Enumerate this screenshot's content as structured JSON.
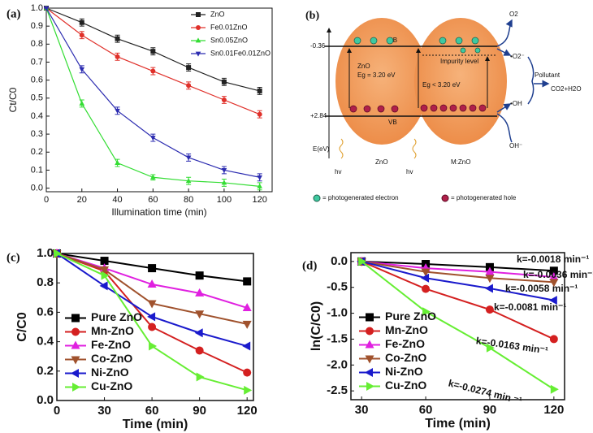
{
  "chart_data": [
    {
      "type": "line",
      "panel_label": "(a)",
      "xlabel": "Illumination time (min)",
      "ylabel": "Ct/C0",
      "x": [
        0,
        20,
        40,
        60,
        80,
        100,
        120
      ],
      "xlim": [
        0,
        127
      ],
      "ylim": [
        -0.02,
        1.0
      ],
      "xticks": [
        0,
        20,
        40,
        60,
        80,
        100,
        120
      ],
      "yticks": [
        {
          "value": 0,
          "label": "0.0"
        },
        0.1,
        0.2,
        0.3,
        0.4,
        0.5,
        0.6,
        0.7,
        0.8,
        0.9,
        {
          "value": 1,
          "label": "1.0"
        }
      ],
      "legend": "upper right",
      "series": [
        {
          "name": "ZnO",
          "color": "#222222",
          "marker": "square",
          "values": [
            1,
            0.92,
            0.83,
            0.76,
            0.67,
            0.59,
            0.54
          ],
          "errors": [
            0,
            0.02,
            0.02,
            0.02,
            0.02,
            0.02,
            0.02
          ]
        },
        {
          "name": "Fe0.01ZnO",
          "color": "#e0302a",
          "marker": "circle",
          "values": [
            1,
            0.85,
            0.73,
            0.65,
            0.57,
            0.49,
            0.41
          ],
          "errors": [
            0,
            0.02,
            0.02,
            0.02,
            0.02,
            0.02,
            0.02
          ]
        },
        {
          "name": "Sn0.05ZnO",
          "color": "#33dd33",
          "marker": "triangle-up",
          "values": [
            1,
            0.47,
            0.14,
            0.06,
            0.04,
            0.03,
            0.01
          ],
          "errors": [
            0,
            0.02,
            0.02,
            0.015,
            0.02,
            0.02,
            0.02
          ]
        },
        {
          "name": "Sn0.01Fe0.01ZnO",
          "color": "#2b2bb0",
          "marker": "triangle-down",
          "values": [
            1,
            0.66,
            0.43,
            0.28,
            0.17,
            0.1,
            0.06
          ],
          "errors": [
            0,
            0.02,
            0.02,
            0.02,
            0.02,
            0.02,
            0.02
          ]
        }
      ]
    },
    {
      "type": "line",
      "panel_label": "(c)",
      "xlabel": "Time (min)",
      "ylabel": "C/C0",
      "x": [
        0,
        30,
        60,
        90,
        120
      ],
      "xlim": [
        0,
        124
      ],
      "ylim": [
        0,
        1.0
      ],
      "xticks": [
        0,
        30,
        60,
        90,
        120
      ],
      "yticks": [
        {
          "value": 0,
          "label": "0.0"
        },
        0.2,
        0.4,
        0.6,
        0.8,
        {
          "value": 1,
          "label": "1.0"
        }
      ],
      "legend": "lower left",
      "series": [
        {
          "name": "Pure ZnO",
          "color": "#000000",
          "marker": "square",
          "values": [
            1,
            0.95,
            0.9,
            0.85,
            0.81
          ]
        },
        {
          "name": "Mn-ZnO",
          "color": "#d42020",
          "marker": "circle",
          "values": [
            1,
            0.88,
            0.5,
            0.34,
            0.19
          ]
        },
        {
          "name": "Fe-ZnO",
          "color": "#e020e0",
          "marker": "triangle-up",
          "values": [
            1,
            0.9,
            0.79,
            0.73,
            0.63
          ]
        },
        {
          "name": "Co-ZnO",
          "color": "#a0522d",
          "marker": "triangle-down",
          "values": [
            1,
            0.89,
            0.66,
            0.59,
            0.52
          ]
        },
        {
          "name": "Ni-ZnO",
          "color": "#1a1acc",
          "marker": "triangle-left",
          "values": [
            1,
            0.78,
            0.57,
            0.46,
            0.37
          ]
        },
        {
          "name": "Cu-ZnO",
          "color": "#66ee33",
          "marker": "triangle-right",
          "values": [
            1,
            0.85,
            0.37,
            0.16,
            0.07
          ]
        }
      ]
    },
    {
      "type": "line",
      "panel_label": "(d)",
      "xlabel": "Time (min)",
      "ylabel": "ln(C/C0)",
      "x": [
        30,
        60,
        90,
        120
      ],
      "xlim": [
        25,
        125
      ],
      "ylim": [
        -2.67,
        0.17
      ],
      "xticks": [
        30,
        60,
        90,
        120
      ],
      "yticks": [
        -2.5,
        {
          "value": -2,
          "label": "-2.0"
        },
        -1.5,
        {
          "value": -1,
          "label": "-1.0"
        },
        -0.5,
        {
          "value": 0,
          "label": "0.0"
        }
      ],
      "legend": "lower left",
      "annotations": [
        "k=-0.0018 min⁻¹",
        "k=-0.0036 min⁻¹",
        "k=-0.0058 min⁻¹",
        "k=-0.0081 min⁻¹",
        "k=-0.0163 min⁻¹",
        "k=-0.0274 min ⁻¹"
      ],
      "series": [
        {
          "name": "Pure ZnO",
          "color": "#000000",
          "marker": "square",
          "values": [
            0,
            -0.05,
            -0.11,
            -0.18
          ]
        },
        {
          "name": "Mn-ZnO",
          "color": "#d42020",
          "marker": "circle",
          "values": [
            0,
            -0.53,
            -0.93,
            -1.5
          ]
        },
        {
          "name": "Fe-ZnO",
          "color": "#e020e0",
          "marker": "triangle-up",
          "values": [
            0,
            -0.13,
            -0.2,
            -0.3
          ]
        },
        {
          "name": "Co-ZnO",
          "color": "#a0522d",
          "marker": "triangle-down",
          "values": [
            0,
            -0.2,
            -0.32,
            -0.4
          ]
        },
        {
          "name": "Ni-ZnO",
          "color": "#1a1acc",
          "marker": "triangle-left",
          "values": [
            0,
            -0.32,
            -0.52,
            -0.75
          ]
        },
        {
          "name": "Cu-ZnO",
          "color": "#66ee33",
          "marker": "triangle-right",
          "values": [
            0,
            -0.97,
            -1.67,
            -2.47
          ]
        }
      ]
    }
  ],
  "diagram": {
    "panel_label": "(b)",
    "cb_energy": "-0.36",
    "vb_energy": "+2.84",
    "cb": "CB",
    "vb": "VB",
    "left_title": "ZnO",
    "left_gap": "Eg = 3.20 eV",
    "right_gap": "Eg < 3.20 eV",
    "impurity": "Impurity level",
    "axis": "E(eV)",
    "light_left": "hv",
    "light_right": "hv",
    "left_name": "ZnO",
    "right_name": "M:ZnO",
    "o2": "O2",
    "superoxide": "•O2⁻",
    "pollutant": "Pollutant",
    "products": "CO2+H2O",
    "hydroxyl": "•OH",
    "hydroxide": "OH⁻",
    "electron_legend": "= photogenerated electron",
    "hole_legend": "= photogenerated hole"
  }
}
